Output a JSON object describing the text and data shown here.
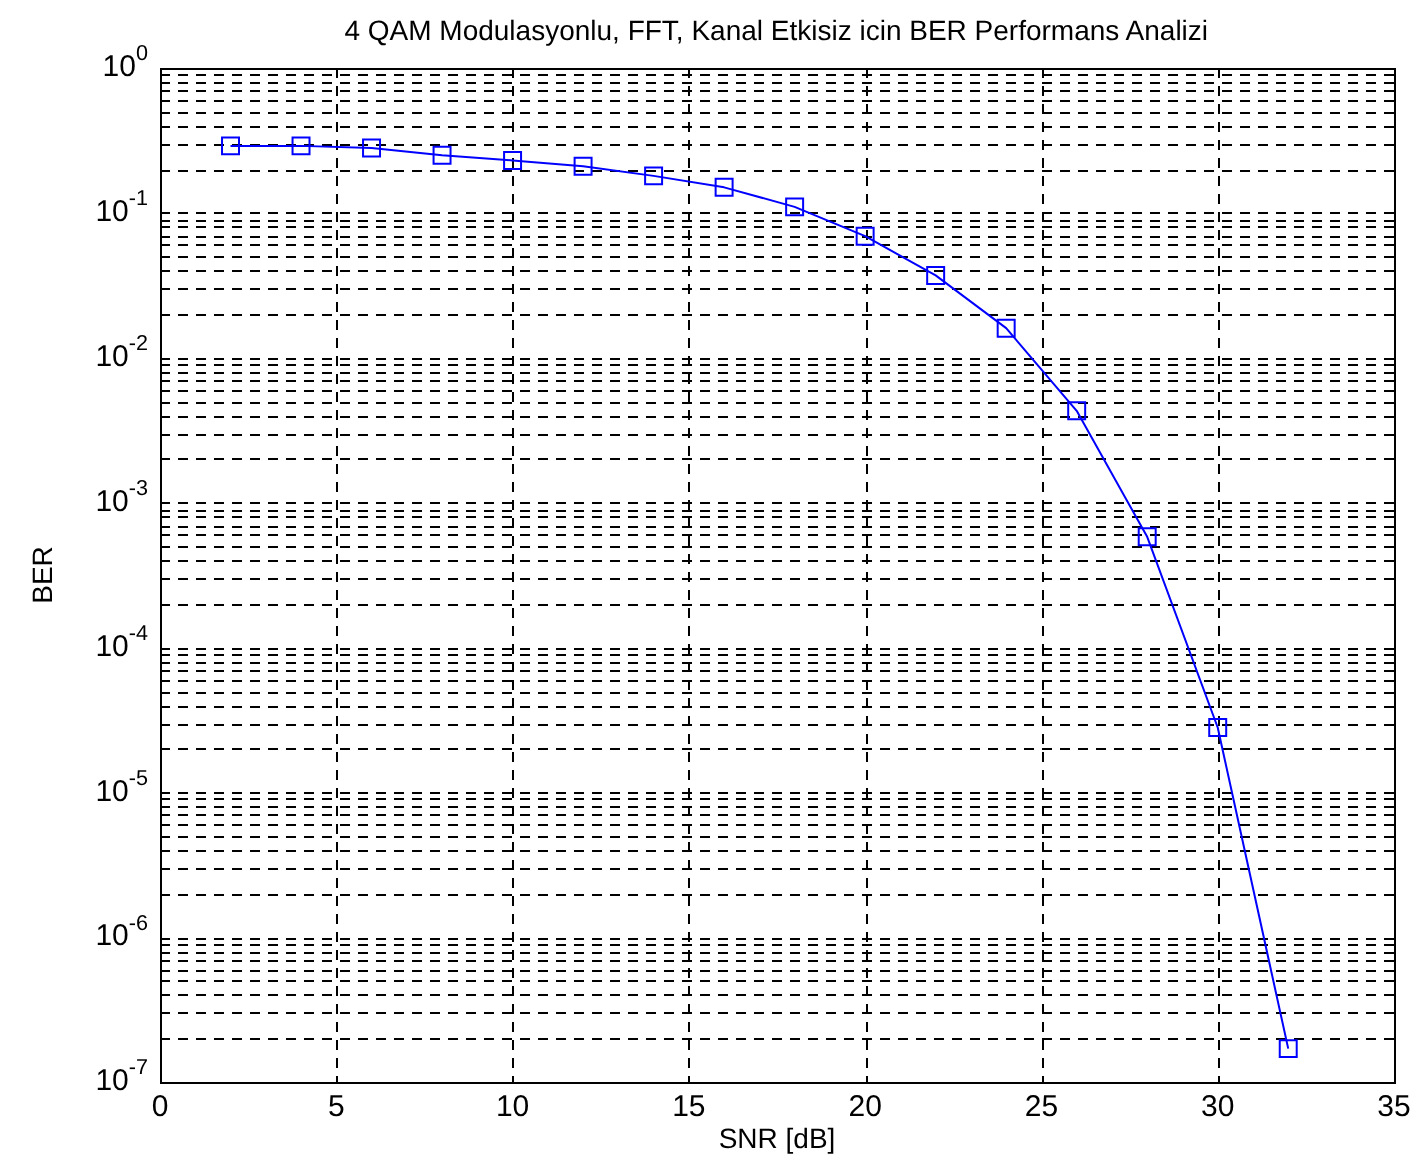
{
  "chart_data": {
    "type": "line",
    "title": "4 QAM Modulasyonlu, FFT, Kanal Etkisiz icin BER Performans Analizi",
    "xlabel": "SNR [dB]",
    "ylabel": "BER",
    "x": [
      2,
      4,
      6,
      8,
      10,
      12,
      14,
      16,
      18,
      20,
      22,
      24,
      26,
      28,
      30,
      32
    ],
    "series": [
      {
        "color": "#0000ff",
        "values": [
          0.29,
          0.29,
          0.28,
          0.25,
          0.23,
          0.21,
          0.18,
          0.15,
          0.11,
          0.069,
          0.037,
          0.016,
          0.0043,
          0.00058,
          2.8e-05,
          1.7e-07
        ]
      }
    ],
    "xlim": [
      0,
      35
    ],
    "xticks": [
      0,
      5,
      10,
      15,
      20,
      25,
      30,
      35
    ],
    "ylim": [
      1e-07,
      1
    ],
    "yticks": [
      {
        "value": 1e-07,
        "label": "10$^{-7}$"
      },
      {
        "value": 1e-06,
        "label": "10$^{-6}$"
      },
      {
        "value": 1e-05,
        "label": "10$^{-5}$"
      },
      {
        "value": 0.0001,
        "label": "10$^{-4}$"
      },
      {
        "value": 0.001,
        "label": "10$^{-3}$"
      },
      {
        "value": 0.01,
        "label": "10$^{-2}$"
      },
      {
        "value": 0.1,
        "label": "10$^{-1}$"
      },
      {
        "value": 1,
        "label": "10$^{0}$"
      }
    ],
    "log": "y",
    "grid": true,
    "marker": "square",
    "line_style": "solid",
    "legend": false
  }
}
